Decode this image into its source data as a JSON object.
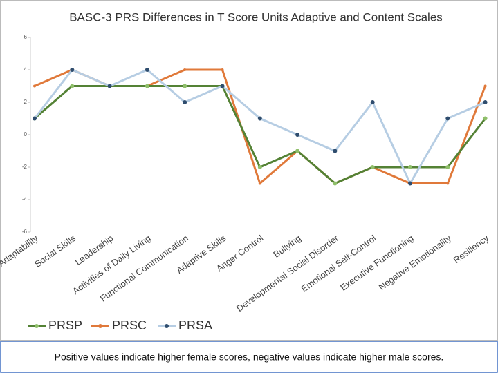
{
  "chart_data": {
    "type": "line",
    "title": "BASC-3 PRS Differences in T Score Units Adaptive and Content Scales",
    "categories": [
      "Adaptability",
      "Social Skills",
      "Leadership",
      "Activities of Daily Living",
      "Functional Communication",
      "Adaptive Skills",
      "Anger Control",
      "Bullying",
      "Developmental Social Disorder",
      "Emotional Self-Control",
      "Executive Functioning",
      "Negative Emotionality",
      "Resiliency"
    ],
    "series": [
      {
        "name": "PRSP",
        "color": "#548235",
        "values": [
          1,
          3,
          3,
          3,
          3,
          3,
          -2,
          -1,
          -3,
          -2,
          -2,
          -2,
          1
        ]
      },
      {
        "name": "PRSC",
        "color": "#e0793a",
        "values": [
          3,
          4,
          3,
          3,
          4,
          4,
          -3,
          -1,
          -3,
          -2,
          -3,
          -3,
          3
        ]
      },
      {
        "name": "PRSA",
        "color": "#b6cde3",
        "values": [
          1,
          4,
          3,
          4,
          2,
          3,
          1,
          0,
          -1,
          2,
          -3,
          1,
          2
        ]
      }
    ],
    "ylim": [
      -6,
      6
    ],
    "yticks": [
      -6,
      -4,
      -2,
      0,
      2,
      4,
      6
    ],
    "note": "Positive values indicate higher female scores, negative values indicate higher male scores."
  }
}
